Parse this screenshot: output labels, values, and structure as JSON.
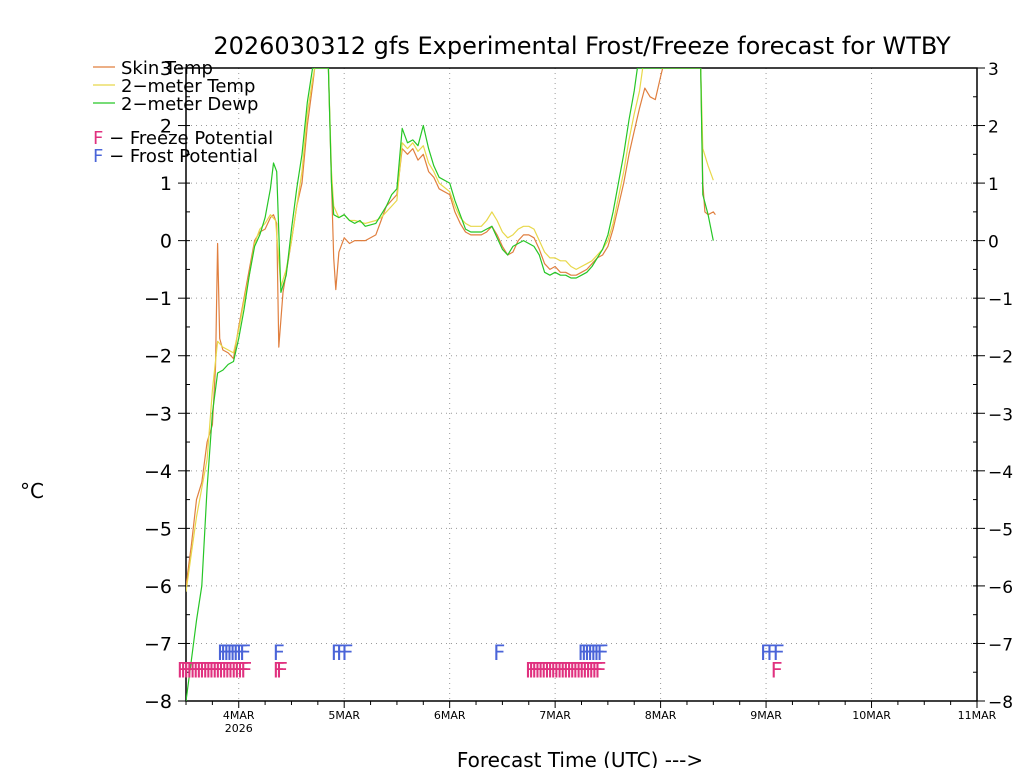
{
  "chart_data": {
    "type": "line",
    "title": "2026030312 gfs Experimental Frost/Freeze forecast for WTBY",
    "xlabel": "Forecast Time (UTC) --->",
    "ylabel": "°C",
    "ylim": [
      -8,
      3
    ],
    "xlim": [
      3.5,
      11.0
    ],
    "y_ticks": [
      -8,
      -7,
      -6,
      -5,
      -4,
      -3,
      -2,
      -1,
      0,
      1,
      2,
      3
    ],
    "y_tick_labels": [
      "−8",
      "−7",
      "−6",
      "−5",
      "−4",
      "−3",
      "−2",
      "−1",
      "0",
      "1",
      "2",
      "3"
    ],
    "x_ticks": [
      {
        "x": 4,
        "label": "4MAR",
        "sublabel": "2026"
      },
      {
        "x": 5,
        "label": "5MAR"
      },
      {
        "x": 6,
        "label": "6MAR"
      },
      {
        "x": 7,
        "label": "7MAR"
      },
      {
        "x": 8,
        "label": "8MAR"
      },
      {
        "x": 9,
        "label": "9MAR"
      },
      {
        "x": 10,
        "label": "10MAR"
      },
      {
        "x": 11,
        "label": "11MAR"
      }
    ],
    "grid": true,
    "legend": {
      "placement": "top-left",
      "entries": [
        {
          "label": "Skin Temp",
          "color": "#e07f3f"
        },
        {
          "label": "2−meter Temp",
          "color": "#e8d84a"
        },
        {
          "label": "2−meter Dewp",
          "color": "#26c626"
        }
      ],
      "potential_marker": "F",
      "potentials": [
        {
          "marker_label": "F",
          "text": " − Freeze Potential",
          "color": "#e0317f"
        },
        {
          "marker_label": "F",
          "text": " − Frost Potential",
          "color": "#4a64d8"
        }
      ]
    },
    "series": [
      {
        "name": "Skin Temp",
        "color": "#e07f3f",
        "points": [
          [
            3.5,
            -6.0
          ],
          [
            3.55,
            -5.3
          ],
          [
            3.6,
            -4.5
          ],
          [
            3.65,
            -4.2
          ],
          [
            3.7,
            -3.5
          ],
          [
            3.75,
            -3.2
          ],
          [
            3.78,
            -2.2
          ],
          [
            3.8,
            -0.05
          ],
          [
            3.82,
            -1.7
          ],
          [
            3.85,
            -1.9
          ],
          [
            3.9,
            -1.95
          ],
          [
            3.95,
            -2.05
          ],
          [
            4.0,
            -1.5
          ],
          [
            4.05,
            -1.0
          ],
          [
            4.1,
            -0.5
          ],
          [
            4.15,
            0.0
          ],
          [
            4.2,
            0.15
          ],
          [
            4.25,
            0.2
          ],
          [
            4.3,
            0.4
          ],
          [
            4.33,
            0.45
          ],
          [
            4.36,
            0.3
          ],
          [
            4.38,
            -1.85
          ],
          [
            4.42,
            -0.9
          ],
          [
            4.5,
            0.0
          ],
          [
            4.55,
            0.6
          ],
          [
            4.6,
            1.0
          ],
          [
            4.65,
            2.0
          ],
          [
            4.7,
            2.7
          ],
          [
            4.72,
            3.0
          ],
          [
            4.85,
            3.0
          ],
          [
            4.88,
            1.0
          ],
          [
            4.9,
            -0.3
          ],
          [
            4.92,
            -0.85
          ],
          [
            4.95,
            -0.2
          ],
          [
            5.0,
            0.05
          ],
          [
            5.05,
            -0.05
          ],
          [
            5.1,
            0.0
          ],
          [
            5.2,
            0.0
          ],
          [
            5.3,
            0.1
          ],
          [
            5.35,
            0.35
          ],
          [
            5.4,
            0.6
          ],
          [
            5.45,
            0.7
          ],
          [
            5.5,
            0.8
          ],
          [
            5.55,
            1.6
          ],
          [
            5.6,
            1.5
          ],
          [
            5.65,
            1.6
          ],
          [
            5.7,
            1.4
          ],
          [
            5.75,
            1.5
          ],
          [
            5.8,
            1.2
          ],
          [
            5.85,
            1.1
          ],
          [
            5.9,
            0.9
          ],
          [
            6.0,
            0.8
          ],
          [
            6.05,
            0.5
          ],
          [
            6.1,
            0.3
          ],
          [
            6.15,
            0.15
          ],
          [
            6.2,
            0.1
          ],
          [
            6.3,
            0.1
          ],
          [
            6.35,
            0.15
          ],
          [
            6.4,
            0.25
          ],
          [
            6.45,
            0.1
          ],
          [
            6.5,
            -0.1
          ],
          [
            6.55,
            -0.25
          ],
          [
            6.6,
            -0.2
          ],
          [
            6.65,
            0.0
          ],
          [
            6.7,
            0.1
          ],
          [
            6.75,
            0.1
          ],
          [
            6.8,
            0.05
          ],
          [
            6.85,
            -0.15
          ],
          [
            6.9,
            -0.4
          ],
          [
            6.95,
            -0.5
          ],
          [
            7.0,
            -0.45
          ],
          [
            7.05,
            -0.55
          ],
          [
            7.1,
            -0.55
          ],
          [
            7.15,
            -0.6
          ],
          [
            7.2,
            -0.6
          ],
          [
            7.25,
            -0.55
          ],
          [
            7.3,
            -0.5
          ],
          [
            7.35,
            -0.4
          ],
          [
            7.4,
            -0.3
          ],
          [
            7.45,
            -0.25
          ],
          [
            7.5,
            -0.1
          ],
          [
            7.55,
            0.2
          ],
          [
            7.6,
            0.6
          ],
          [
            7.65,
            1.0
          ],
          [
            7.7,
            1.5
          ],
          [
            7.75,
            1.9
          ],
          [
            7.8,
            2.3
          ],
          [
            7.85,
            2.65
          ],
          [
            7.9,
            2.5
          ],
          [
            7.95,
            2.45
          ],
          [
            8.0,
            2.85
          ],
          [
            8.02,
            3.0
          ],
          [
            8.38,
            3.0
          ],
          [
            8.4,
            1.0
          ],
          [
            8.42,
            0.5
          ],
          [
            8.45,
            0.45
          ],
          [
            8.5,
            0.5
          ],
          [
            8.52,
            0.45
          ]
        ]
      },
      {
        "name": "2−meter Temp",
        "color": "#e8d84a",
        "points": [
          [
            3.5,
            -6.1
          ],
          [
            3.6,
            -4.8
          ],
          [
            3.7,
            -3.8
          ],
          [
            3.75,
            -2.6
          ],
          [
            3.8,
            -1.75
          ],
          [
            3.85,
            -1.85
          ],
          [
            3.9,
            -1.9
          ],
          [
            3.95,
            -1.95
          ],
          [
            4.0,
            -1.55
          ],
          [
            4.05,
            -1.05
          ],
          [
            4.1,
            -0.6
          ],
          [
            4.15,
            -0.05
          ],
          [
            4.2,
            0.2
          ],
          [
            4.25,
            0.3
          ],
          [
            4.3,
            0.45
          ],
          [
            4.35,
            0.35
          ],
          [
            4.4,
            -0.8
          ],
          [
            4.45,
            -0.5
          ],
          [
            4.5,
            0.0
          ],
          [
            4.6,
            1.2
          ],
          [
            4.65,
            2.2
          ],
          [
            4.7,
            2.8
          ],
          [
            4.72,
            3.0
          ],
          [
            4.85,
            3.0
          ],
          [
            4.88,
            1.2
          ],
          [
            4.9,
            0.6
          ],
          [
            4.95,
            0.4
          ],
          [
            5.0,
            0.45
          ],
          [
            5.05,
            0.35
          ],
          [
            5.1,
            0.35
          ],
          [
            5.2,
            0.3
          ],
          [
            5.3,
            0.35
          ],
          [
            5.35,
            0.4
          ],
          [
            5.4,
            0.5
          ],
          [
            5.45,
            0.6
          ],
          [
            5.5,
            0.7
          ],
          [
            5.55,
            1.7
          ],
          [
            5.6,
            1.6
          ],
          [
            5.65,
            1.7
          ],
          [
            5.7,
            1.55
          ],
          [
            5.75,
            1.65
          ],
          [
            5.8,
            1.35
          ],
          [
            5.85,
            1.2
          ],
          [
            5.9,
            1.0
          ],
          [
            6.0,
            0.85
          ],
          [
            6.05,
            0.6
          ],
          [
            6.1,
            0.4
          ],
          [
            6.15,
            0.3
          ],
          [
            6.2,
            0.25
          ],
          [
            6.3,
            0.25
          ],
          [
            6.35,
            0.35
          ],
          [
            6.4,
            0.5
          ],
          [
            6.45,
            0.35
          ],
          [
            6.5,
            0.15
          ],
          [
            6.55,
            0.05
          ],
          [
            6.6,
            0.1
          ],
          [
            6.65,
            0.2
          ],
          [
            6.7,
            0.25
          ],
          [
            6.75,
            0.25
          ],
          [
            6.8,
            0.2
          ],
          [
            6.85,
            0.0
          ],
          [
            6.9,
            -0.2
          ],
          [
            6.95,
            -0.3
          ],
          [
            7.0,
            -0.3
          ],
          [
            7.05,
            -0.35
          ],
          [
            7.1,
            -0.35
          ],
          [
            7.15,
            -0.45
          ],
          [
            7.2,
            -0.5
          ],
          [
            7.25,
            -0.45
          ],
          [
            7.3,
            -0.4
          ],
          [
            7.35,
            -0.35
          ],
          [
            7.4,
            -0.25
          ],
          [
            7.45,
            -0.15
          ],
          [
            7.5,
            0.0
          ],
          [
            7.55,
            0.3
          ],
          [
            7.6,
            0.75
          ],
          [
            7.65,
            1.2
          ],
          [
            7.7,
            1.75
          ],
          [
            7.75,
            2.2
          ],
          [
            7.8,
            2.6
          ],
          [
            7.83,
            3.0
          ],
          [
            8.38,
            3.0
          ],
          [
            8.4,
            1.6
          ],
          [
            8.45,
            1.3
          ],
          [
            8.5,
            1.05
          ]
        ]
      },
      {
        "name": "2−meter Dewp",
        "color": "#26c626",
        "points": [
          [
            3.5,
            -8.0
          ],
          [
            3.55,
            -7.3
          ],
          [
            3.6,
            -6.6
          ],
          [
            3.65,
            -6.0
          ],
          [
            3.7,
            -4.3
          ],
          [
            3.75,
            -3.0
          ],
          [
            3.8,
            -2.3
          ],
          [
            3.85,
            -2.25
          ],
          [
            3.9,
            -2.15
          ],
          [
            3.95,
            -2.1
          ],
          [
            4.0,
            -1.7
          ],
          [
            4.05,
            -1.2
          ],
          [
            4.1,
            -0.6
          ],
          [
            4.15,
            -0.1
          ],
          [
            4.2,
            0.1
          ],
          [
            4.25,
            0.4
          ],
          [
            4.3,
            0.9
          ],
          [
            4.33,
            1.35
          ],
          [
            4.36,
            1.2
          ],
          [
            4.4,
            -0.9
          ],
          [
            4.45,
            -0.6
          ],
          [
            4.5,
            0.2
          ],
          [
            4.55,
            0.9
          ],
          [
            4.6,
            1.5
          ],
          [
            4.65,
            2.4
          ],
          [
            4.7,
            3.0
          ],
          [
            4.85,
            3.0
          ],
          [
            4.88,
            1.0
          ],
          [
            4.9,
            0.45
          ],
          [
            4.95,
            0.4
          ],
          [
            5.0,
            0.45
          ],
          [
            5.05,
            0.35
          ],
          [
            5.1,
            0.3
          ],
          [
            5.15,
            0.35
          ],
          [
            5.2,
            0.25
          ],
          [
            5.3,
            0.3
          ],
          [
            5.35,
            0.45
          ],
          [
            5.4,
            0.6
          ],
          [
            5.45,
            0.8
          ],
          [
            5.5,
            0.9
          ],
          [
            5.55,
            1.95
          ],
          [
            5.6,
            1.7
          ],
          [
            5.65,
            1.75
          ],
          [
            5.7,
            1.65
          ],
          [
            5.75,
            2.0
          ],
          [
            5.8,
            1.6
          ],
          [
            5.85,
            1.3
          ],
          [
            5.9,
            1.1
          ],
          [
            6.0,
            1.0
          ],
          [
            6.05,
            0.7
          ],
          [
            6.1,
            0.45
          ],
          [
            6.15,
            0.2
          ],
          [
            6.2,
            0.15
          ],
          [
            6.3,
            0.15
          ],
          [
            6.35,
            0.2
          ],
          [
            6.4,
            0.25
          ],
          [
            6.45,
            0.05
          ],
          [
            6.5,
            -0.15
          ],
          [
            6.55,
            -0.25
          ],
          [
            6.6,
            -0.1
          ],
          [
            6.65,
            -0.05
          ],
          [
            6.7,
            0.0
          ],
          [
            6.75,
            -0.05
          ],
          [
            6.8,
            -0.1
          ],
          [
            6.85,
            -0.25
          ],
          [
            6.9,
            -0.55
          ],
          [
            6.95,
            -0.6
          ],
          [
            7.0,
            -0.55
          ],
          [
            7.05,
            -0.6
          ],
          [
            7.1,
            -0.6
          ],
          [
            7.15,
            -0.65
          ],
          [
            7.2,
            -0.65
          ],
          [
            7.25,
            -0.6
          ],
          [
            7.3,
            -0.55
          ],
          [
            7.35,
            -0.45
          ],
          [
            7.4,
            -0.3
          ],
          [
            7.45,
            -0.15
          ],
          [
            7.5,
            0.1
          ],
          [
            7.55,
            0.5
          ],
          [
            7.6,
            1.0
          ],
          [
            7.65,
            1.5
          ],
          [
            7.7,
            2.1
          ],
          [
            7.75,
            2.6
          ],
          [
            7.78,
            3.0
          ],
          [
            8.38,
            3.0
          ],
          [
            8.4,
            0.8
          ],
          [
            8.45,
            0.45
          ],
          [
            8.5,
            0.0
          ]
        ]
      }
    ],
    "frost_potential": {
      "label": "F",
      "color": "#4a64d8",
      "y": -7.15,
      "x": [
        3.85,
        3.88,
        3.91,
        3.94,
        3.97,
        4.0,
        4.03,
        4.06,
        4.38,
        4.93,
        4.98,
        5.03,
        6.47,
        7.27,
        7.3,
        7.33,
        7.36,
        7.39,
        7.42,
        7.45,
        9.0,
        9.06,
        9.12
      ]
    },
    "freeze_potential": {
      "label": "F",
      "color": "#e0317f",
      "y": -7.45,
      "x": [
        3.47,
        3.5,
        3.53,
        3.56,
        3.59,
        3.62,
        3.65,
        3.68,
        3.71,
        3.74,
        3.77,
        3.8,
        3.83,
        3.86,
        3.89,
        3.92,
        3.95,
        3.98,
        4.01,
        4.04,
        4.07,
        4.38,
        4.41,
        6.77,
        6.8,
        6.83,
        6.86,
        6.89,
        6.92,
        6.95,
        6.98,
        7.01,
        7.04,
        7.07,
        7.1,
        7.13,
        7.16,
        7.19,
        7.22,
        7.25,
        7.28,
        7.31,
        7.34,
        7.37,
        7.4,
        7.43,
        9.1
      ]
    }
  }
}
